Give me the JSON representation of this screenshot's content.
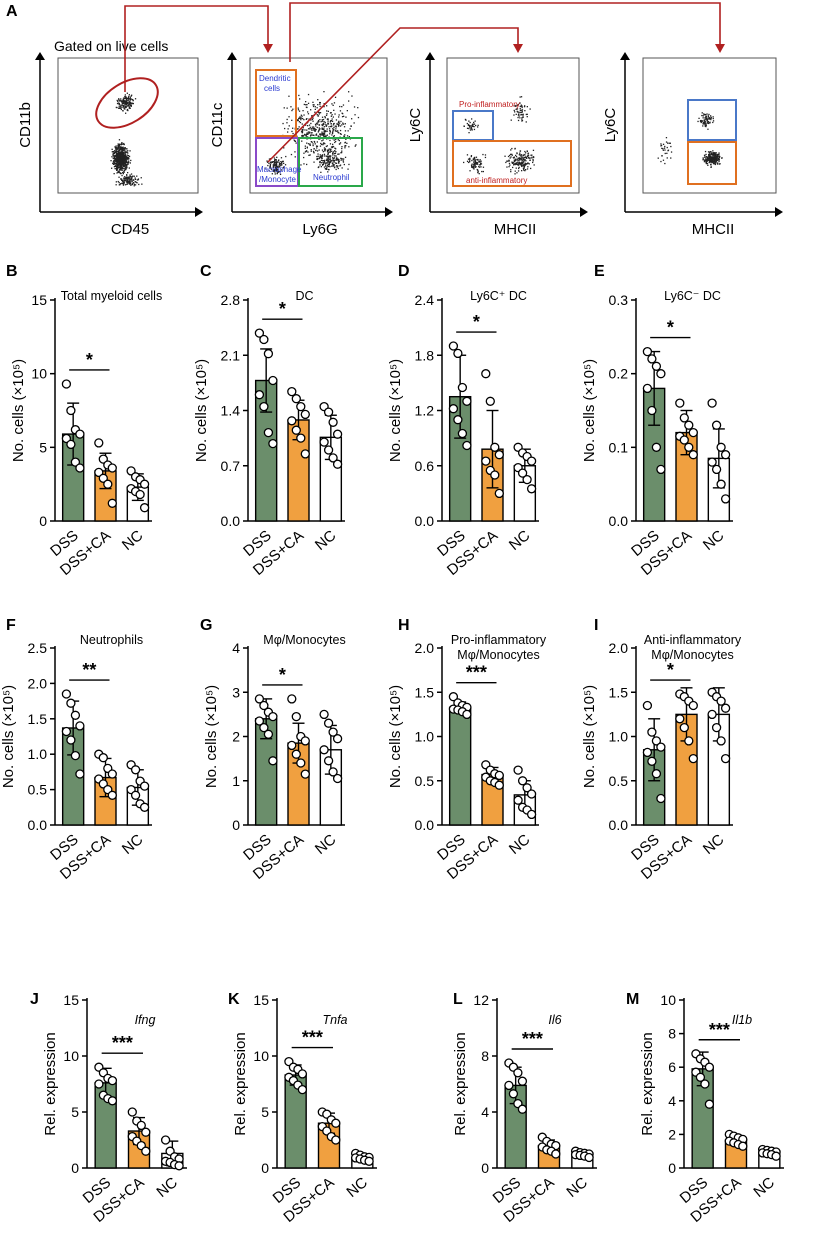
{
  "figure": {
    "panel_letters": [
      "A",
      "B",
      "C",
      "D",
      "E",
      "F",
      "G",
      "H",
      "I",
      "J",
      "K",
      "L",
      "M"
    ]
  },
  "flow": {
    "panel_a": {
      "header": "Gated on live cells",
      "plots": [
        {
          "xlabel": "CD45",
          "ylabel": "CD11b"
        },
        {
          "xlabel": "Ly6G",
          "ylabel": "CD11c",
          "gates": [
            "Dendritic",
            "cells",
            "Macrophage",
            "/Monocyte",
            "Neutrophil"
          ]
        },
        {
          "xlabel": "MHCII",
          "ylabel": "Ly6C",
          "gates": [
            "Pro-inflammatory",
            "anti-inflammatory"
          ]
        },
        {
          "xlabel": "MHCII",
          "ylabel": "Ly6C"
        }
      ]
    }
  },
  "colors": {
    "dss": "#6b8e6b",
    "dss_ca": "#f0a040",
    "nc": "#ffffff",
    "gate_red": "#b02020",
    "gate_orange": "#e07020",
    "gate_blue": "#4a78c8",
    "gate_purple": "#8a4ac8",
    "gate_green": "#2aa84a",
    "gate_text_blue": "#2a3ad0",
    "gate_text_red": "#c02020"
  },
  "chart_data": [
    {
      "id": "B",
      "type": "bar",
      "title": "Total myeloid cells",
      "title2": "",
      "ylabel": "No. cells (×10⁵)",
      "categories": [
        "DSS",
        "DSS+CA",
        "NC"
      ],
      "values": [
        5.9,
        3.4,
        2.3
      ],
      "sd": [
        2.1,
        1.2,
        0.9
      ],
      "ylim": [
        0,
        15
      ],
      "ticks": [
        "0",
        "5",
        "10",
        "15"
      ],
      "significance": "*",
      "points": [
        [
          9.3,
          7.5,
          6.2,
          5.9,
          5.6,
          5.2,
          4.0,
          3.6
        ],
        [
          5.3,
          4.2,
          3.8,
          3.6,
          3.3,
          2.9,
          2.5,
          1.2
        ],
        [
          3.4,
          3.0,
          2.8,
          2.5,
          2.2,
          2.0,
          1.8,
          0.9
        ]
      ]
    },
    {
      "id": "C",
      "type": "bar",
      "title": "DC",
      "title2": "",
      "ylabel": "No. cells (×10⁵)",
      "categories": [
        "DSS",
        "DSS+CA",
        "NC"
      ],
      "values": [
        1.78,
        1.28,
        1.06
      ],
      "sd": [
        0.4,
        0.25,
        0.28
      ],
      "ylim": [
        0,
        2.8
      ],
      "ticks": [
        "0.0",
        "0.7",
        "1.4",
        "2.1",
        "2.8"
      ],
      "significance": "*",
      "points": [
        [
          2.38,
          2.3,
          2.12,
          1.78,
          1.6,
          1.45,
          1.12,
          0.98
        ],
        [
          1.64,
          1.55,
          1.45,
          1.35,
          1.27,
          1.15,
          1.05,
          0.85
        ],
        [
          1.45,
          1.38,
          1.25,
          1.1,
          1.0,
          0.9,
          0.8,
          0.72
        ]
      ]
    },
    {
      "id": "D",
      "type": "bar",
      "title": "Ly6C⁺ DC",
      "title2": "",
      "ylabel": "No. cells (×10⁵)",
      "categories": [
        "DSS",
        "DSS+CA",
        "NC"
      ],
      "values": [
        1.35,
        0.78,
        0.6
      ],
      "sd": [
        0.45,
        0.42,
        0.18
      ],
      "ylim": [
        0,
        2.4
      ],
      "ticks": [
        "0.0",
        "0.6",
        "1.2",
        "1.8",
        "2.4"
      ],
      "significance": "*",
      "points": [
        [
          1.9,
          1.82,
          1.45,
          1.3,
          1.22,
          1.1,
          0.95,
          0.82
        ],
        [
          1.6,
          1.3,
          0.8,
          0.72,
          0.65,
          0.55,
          0.5,
          0.3
        ],
        [
          0.8,
          0.74,
          0.7,
          0.65,
          0.58,
          0.52,
          0.45,
          0.35
        ]
      ]
    },
    {
      "id": "E",
      "type": "bar",
      "title": "Ly6C⁻ DC",
      "title2": "",
      "ylabel": "No. cells (×10⁵)",
      "categories": [
        "DSS",
        "DSS+CA",
        "NC"
      ],
      "values": [
        0.18,
        0.12,
        0.085
      ],
      "sd": [
        0.05,
        0.03,
        0.04
      ],
      "ylim": [
        0,
        0.3
      ],
      "ticks": [
        "0.0",
        "0.1",
        "0.2",
        "0.3"
      ],
      "significance": "*",
      "points": [
        [
          0.23,
          0.22,
          0.21,
          0.2,
          0.18,
          0.15,
          0.1,
          0.07
        ],
        [
          0.16,
          0.14,
          0.13,
          0.12,
          0.115,
          0.11,
          0.1,
          0.09
        ],
        [
          0.16,
          0.13,
          0.1,
          0.09,
          0.08,
          0.07,
          0.05,
          0.03
        ]
      ]
    },
    {
      "id": "F",
      "type": "bar",
      "title": "Neutrophils",
      "title2": "",
      "ylabel": "No. cells (×10⁵)",
      "categories": [
        "DSS",
        "DSS+CA",
        "NC"
      ],
      "values": [
        1.37,
        0.67,
        0.53
      ],
      "sd": [
        0.38,
        0.27,
        0.25
      ],
      "ylim": [
        0,
        2.5
      ],
      "ticks": [
        "0.0",
        "0.5",
        "1.0",
        "1.5",
        "2.0",
        "2.5"
      ],
      "significance": "**",
      "points": [
        [
          1.85,
          1.72,
          1.55,
          1.4,
          1.32,
          1.2,
          0.98,
          0.72
        ],
        [
          1.0,
          0.95,
          0.8,
          0.72,
          0.65,
          0.58,
          0.5,
          0.42
        ],
        [
          0.85,
          0.78,
          0.62,
          0.55,
          0.5,
          0.42,
          0.3,
          0.25
        ]
      ]
    },
    {
      "id": "G",
      "type": "bar",
      "title": "Mφ/Monocytes",
      "title2": "",
      "ylabel": "No. cells (×10⁵)",
      "categories": [
        "DSS",
        "DSS+CA",
        "NC"
      ],
      "values": [
        2.4,
        1.85,
        1.7
      ],
      "sd": [
        0.45,
        0.45,
        0.55
      ],
      "ylim": [
        0,
        4
      ],
      "ticks": [
        "0",
        "1",
        "2",
        "3",
        "4"
      ],
      "significance": "*",
      "points": [
        [
          2.85,
          2.7,
          2.55,
          2.45,
          2.35,
          2.2,
          2.05,
          1.45
        ],
        [
          2.85,
          2.45,
          2.0,
          1.9,
          1.8,
          1.6,
          1.4,
          1.15
        ],
        [
          2.5,
          2.3,
          2.1,
          1.95,
          1.7,
          1.45,
          1.2,
          1.05
        ]
      ]
    },
    {
      "id": "H",
      "type": "bar",
      "title": "Pro-inflammatory",
      "title2": "Mφ/Monocytes",
      "ylabel": "No. cells (×10⁵)",
      "categories": [
        "DSS",
        "DSS+CA",
        "NC"
      ],
      "values": [
        1.33,
        0.57,
        0.34
      ],
      "sd": [
        0.06,
        0.08,
        0.16
      ],
      "ylim": [
        0,
        2
      ],
      "ticks": [
        "0.0",
        "0.5",
        "1.0",
        "1.5",
        "2.0"
      ],
      "significance": "***",
      "points": [
        [
          1.45,
          1.38,
          1.35,
          1.33,
          1.31,
          1.3,
          1.28,
          1.25
        ],
        [
          0.68,
          0.62,
          0.58,
          0.56,
          0.54,
          0.5,
          0.48,
          0.45
        ],
        [
          0.62,
          0.5,
          0.42,
          0.35,
          0.28,
          0.2,
          0.17,
          0.12
        ]
      ]
    },
    {
      "id": "I",
      "type": "bar",
      "title": "Anti-inflammatory",
      "title2": "Mφ/Monocytes",
      "ylabel": "No. cells (×10⁵)",
      "categories": [
        "DSS",
        "DSS+CA",
        "NC"
      ],
      "values": [
        0.85,
        1.25,
        1.25
      ],
      "sd": [
        0.35,
        0.3,
        0.3
      ],
      "ylim": [
        0,
        2
      ],
      "ticks": [
        "0.0",
        "0.5",
        "1.0",
        "1.5",
        "2.0"
      ],
      "significance": "*",
      "points": [
        [
          1.35,
          1.05,
          0.95,
          0.88,
          0.82,
          0.72,
          0.58,
          0.3
        ],
        [
          1.48,
          1.45,
          1.4,
          1.35,
          1.2,
          1.1,
          0.95,
          0.75
        ],
        [
          1.5,
          1.45,
          1.4,
          1.32,
          1.25,
          1.1,
          0.95,
          0.75
        ]
      ]
    },
    {
      "id": "J",
      "type": "bar",
      "title": "Ifng",
      "title2": "",
      "italic_title": true,
      "ylabel": "Rel. expression",
      "categories": [
        "DSS",
        "DSS+CA",
        "NC"
      ],
      "values": [
        7.6,
        3.3,
        1.3
      ],
      "sd": [
        1.3,
        1.2,
        1.1
      ],
      "ylim": [
        0,
        15
      ],
      "ticks": [
        "0",
        "5",
        "10",
        "15"
      ],
      "significance": "***",
      "points": [
        [
          9.0,
          8.5,
          8.0,
          7.8,
          7.5,
          6.5,
          6.2,
          6.0
        ],
        [
          5.0,
          4.2,
          3.8,
          3.2,
          2.8,
          2.4,
          2.0,
          1.5
        ],
        [
          2.5,
          1.5,
          1.0,
          0.8,
          0.6,
          0.5,
          0.3,
          0.2
        ]
      ]
    },
    {
      "id": "K",
      "type": "bar",
      "title": "Tnfa",
      "title2": "",
      "italic_title": true,
      "ylabel": "Rel. expression",
      "categories": [
        "DSS",
        "DSS+CA",
        "NC"
      ],
      "values": [
        8.3,
        4.0,
        0.95
      ],
      "sd": [
        0.9,
        0.9,
        0.3
      ],
      "ylim": [
        0,
        15
      ],
      "ticks": [
        "0",
        "5",
        "10",
        "15"
      ],
      "significance": "***",
      "points": [
        [
          9.5,
          9.0,
          8.8,
          8.4,
          8.1,
          7.8,
          7.4,
          7.0
        ],
        [
          5.0,
          4.8,
          4.3,
          4.0,
          3.7,
          3.3,
          2.8,
          2.5
        ],
        [
          1.3,
          1.15,
          1.0,
          0.95,
          0.9,
          0.8,
          0.7,
          0.6
        ]
      ]
    },
    {
      "id": "L",
      "type": "bar",
      "title": "Il6",
      "title2": "",
      "italic_title": true,
      "ylabel": "Rel. expression",
      "categories": [
        "DSS",
        "DSS+CA",
        "NC"
      ],
      "values": [
        5.9,
        1.6,
        1.0
      ],
      "sd": [
        1.3,
        0.4,
        0.2
      ],
      "ylim": [
        0,
        12
      ],
      "ticks": [
        "0",
        "4",
        "8",
        "12"
      ],
      "significance": "***",
      "points": [
        [
          7.5,
          7.2,
          6.8,
          6.2,
          5.9,
          5.3,
          4.6,
          4.2
        ],
        [
          2.2,
          1.9,
          1.7,
          1.6,
          1.5,
          1.3,
          1.2,
          1.0
        ],
        [
          1.2,
          1.1,
          1.05,
          1.0,
          0.95,
          0.9,
          0.85,
          0.75
        ]
      ]
    },
    {
      "id": "M",
      "type": "bar",
      "title": "Il1b",
      "title2": "",
      "italic_title": true,
      "ylabel": "Rel. expression",
      "categories": [
        "DSS",
        "DSS+CA",
        "NC"
      ],
      "values": [
        5.9,
        1.65,
        0.95
      ],
      "sd": [
        1.0,
        0.3,
        0.15
      ],
      "ylim": [
        0,
        10
      ],
      "ticks": [
        "0",
        "2",
        "4",
        "6",
        "8",
        "10"
      ],
      "significance": "***",
      "points": [
        [
          6.8,
          6.5,
          6.3,
          6.0,
          5.7,
          5.4,
          5.0,
          3.8
        ],
        [
          2.0,
          1.9,
          1.8,
          1.7,
          1.6,
          1.5,
          1.4,
          1.3
        ],
        [
          1.1,
          1.05,
          1.0,
          0.95,
          0.9,
          0.85,
          0.8,
          0.7
        ]
      ]
    }
  ]
}
